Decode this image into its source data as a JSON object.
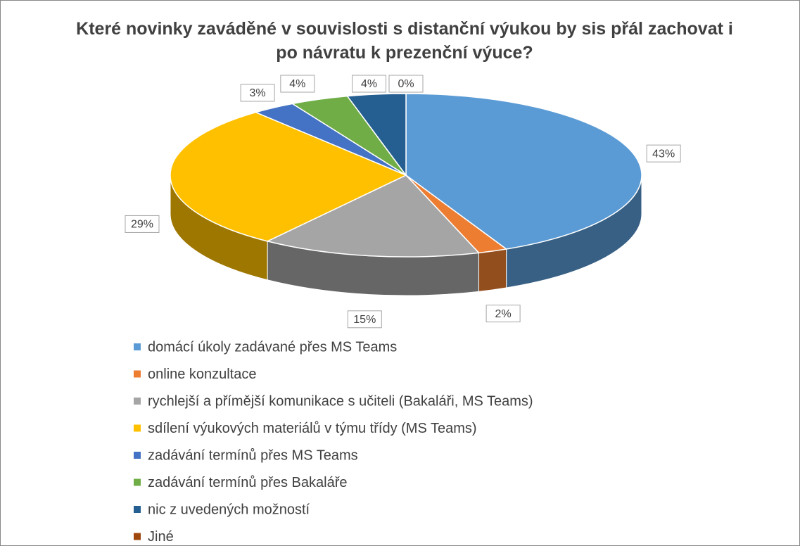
{
  "chart_data": {
    "type": "pie",
    "title": "Které novinky zaváděné v souvislosti s distanční výukou by sis přál zachovat i po návratu k prezenční výuce?",
    "categories": [
      "domácí úkoly zadávané přes MS Teams",
      "online konzultace",
      "rychlejší a přímější komunikace s učiteli (Bakaláři, MS Teams)",
      "sdílení výukových materiálů v týmu třídy (MS Teams)",
      "zadávání termínů přes MS Teams",
      "zadávání termínů přes Bakaláře",
      "nic z uvedených možností",
      "Jiné"
    ],
    "values": [
      43,
      2,
      15,
      29,
      3,
      4,
      4,
      0
    ],
    "value_labels": [
      "43%",
      "2%",
      "15%",
      "29%",
      "3%",
      "4%",
      "4%",
      "0%"
    ],
    "colors": [
      "#5b9bd5",
      "#ed7d31",
      "#a5a5a5",
      "#ffc000",
      "#4472c4",
      "#70ad47",
      "#255e91",
      "#9e480e"
    ],
    "legend": "bottom"
  }
}
